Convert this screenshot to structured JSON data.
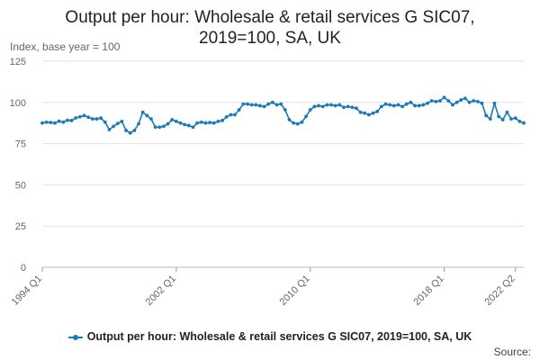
{
  "title_line1": "Output per hour: Wholesale & retail services G SIC07,",
  "title_line2": "2019=100, SA, UK",
  "unit_label": "Index, base year = 100",
  "source_label": "Source:",
  "legend_label": "Output per hour: Wholesale & retail services G SIC07, 2019=100, SA, UK",
  "series_color": "#1a7ab8",
  "chart_data": {
    "type": "line",
    "title": "Output per hour: Wholesale & retail services G SIC07, 2019=100, SA, UK",
    "ylabel": "Index, base year = 100",
    "ylim": [
      0,
      125
    ],
    "yticks": [
      0,
      25,
      50,
      75,
      100,
      125
    ],
    "xticks": [
      "1994 Q1",
      "2002 Q1",
      "2010 Q1",
      "2018 Q1",
      "2022 Q2"
    ],
    "grid": true,
    "legend_position": "bottom",
    "series": [
      {
        "name": "Output per hour: Wholesale & retail services G SIC07, 2019=100, SA, UK",
        "start": "1994 Q1",
        "values": [
          87.5,
          88.0,
          87.8,
          87.5,
          88.6,
          88.0,
          89.2,
          89.0,
          90.6,
          91.3,
          92.0,
          91.0,
          90.0,
          90.0,
          90.5,
          88.0,
          83.5,
          85.5,
          87.2,
          88.5,
          83.0,
          81.5,
          83.0,
          87.0,
          94.0,
          92.0,
          90.0,
          85.0,
          85.0,
          85.5,
          87.0,
          89.5,
          88.5,
          87.5,
          86.5,
          86.0,
          85.0,
          87.5,
          88.0,
          87.5,
          87.8,
          87.5,
          88.5,
          89.0,
          91.2,
          92.5,
          92.5,
          95.5,
          99.0,
          99.0,
          98.5,
          98.5,
          98.0,
          97.5,
          99.0,
          100.0,
          98.5,
          99.0,
          95.5,
          89.5,
          87.5,
          87.0,
          88.0,
          91.5,
          95.5,
          97.5,
          98.0,
          97.5,
          98.5,
          98.5,
          98.0,
          98.5,
          97.0,
          97.5,
          97.0,
          96.5,
          94.0,
          93.5,
          92.5,
          93.5,
          94.5,
          97.5,
          99.0,
          98.5,
          98.0,
          98.5,
          97.5,
          99.0,
          100.0,
          98.0,
          98.0,
          98.5,
          99.5,
          101.0,
          100.5,
          101.0,
          103.0,
          101.0,
          98.5,
          100.0,
          101.5,
          102.5,
          100.0,
          101.0,
          100.5,
          99.5,
          92.0,
          90.0,
          99.5,
          91.5,
          89.5,
          94.0,
          90.0,
          90.5,
          88.5,
          87.5
        ]
      }
    ]
  }
}
